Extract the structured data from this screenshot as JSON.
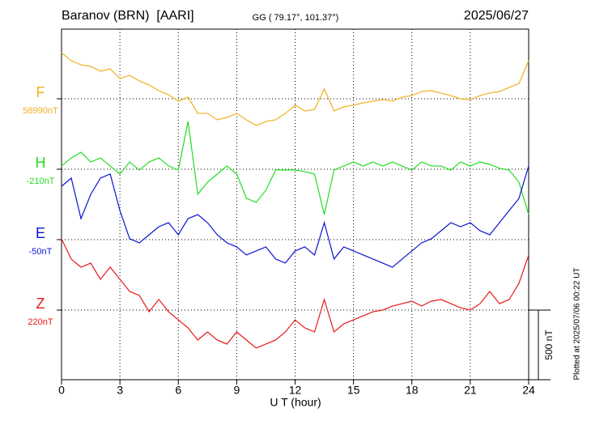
{
  "chart_data": {
    "type": "line",
    "title": "Baranov (BRN)  [AARI]",
    "subtitle": "GG ( 79.17°, 101.37°)",
    "date": "2025/06/27",
    "x_label": "U T (hour)",
    "note": "Plotted at 2025/07/06 00:22 UT",
    "scale_bar": {
      "value": 500,
      "label": "500 nT"
    },
    "xlim": [
      0,
      24
    ],
    "xticks": [
      0,
      3,
      6,
      9,
      12,
      15,
      18,
      21,
      24
    ],
    "grid": true,
    "x": [
      0,
      0.5,
      1,
      1.5,
      2,
      2.5,
      3,
      3.5,
      4,
      4.5,
      5,
      5.5,
      6,
      6.5,
      7,
      7.5,
      8,
      8.5,
      9,
      9.5,
      10,
      10.5,
      11,
      11.5,
      12,
      12.5,
      13,
      13.5,
      14,
      14.5,
      15,
      15.5,
      16,
      16.5,
      17,
      17.5,
      18,
      18.5,
      19,
      19.5,
      20,
      20.5,
      21,
      21.5,
      22,
      22.5,
      23,
      23.5,
      24
    ],
    "series": [
      {
        "name": "F",
        "color": "#f0b020",
        "baseline": {
          "value": 58990,
          "label": "58990nT"
        },
        "values": [
          59321,
          59263,
          59234,
          59222,
          59188,
          59205,
          59135,
          59158,
          59118,
          59089,
          59048,
          59019,
          58973,
          59002,
          58885,
          58885,
          58839,
          58856,
          58885,
          58839,
          58798,
          58827,
          58839,
          58885,
          58944,
          58903,
          58914,
          59060,
          58903,
          58932,
          58944,
          58961,
          58973,
          58984,
          58973,
          59002,
          59013,
          59042,
          59048,
          59031,
          59013,
          58990,
          58984,
          59013,
          59031,
          59042,
          59071,
          59100,
          59263
        ]
      },
      {
        "name": "H",
        "color": "#22dd22",
        "baseline": {
          "value": -210,
          "label": "-210nT"
        },
        "values": [
          -187,
          -129,
          -88,
          -158,
          -129,
          -187,
          -245,
          -158,
          -216,
          -158,
          -129,
          -187,
          -216,
          133,
          -390,
          -303,
          -245,
          -187,
          -245,
          -419,
          -448,
          -361,
          -216,
          -216,
          -216,
          -227,
          -245,
          -535,
          -216,
          -187,
          -158,
          -187,
          -158,
          -187,
          -158,
          -187,
          -216,
          -158,
          -187,
          -187,
          -216,
          -158,
          -187,
          -158,
          -175,
          -204,
          -216,
          -303,
          -535
        ]
      },
      {
        "name": "E",
        "color": "#0a14d0",
        "baseline": {
          "value": -50,
          "label": "-50nT"
        },
        "values": [
          333,
          392,
          101,
          275,
          392,
          421,
          159,
          -44,
          -73,
          -15,
          43,
          72,
          -15,
          101,
          130,
          72,
          -15,
          -73,
          -102,
          -160,
          -131,
          -102,
          -189,
          -218,
          -131,
          -102,
          -160,
          72,
          -189,
          -102,
          -131,
          -160,
          -189,
          -218,
          -248,
          -189,
          -131,
          -73,
          -44,
          14,
          72,
          43,
          72,
          14,
          -15,
          72,
          159,
          246,
          479
        ]
      },
      {
        "name": "Z",
        "color": "#e81818",
        "baseline": {
          "value": 220,
          "label": "220nT"
        },
        "values": [
          731,
          586,
          528,
          557,
          441,
          528,
          441,
          354,
          325,
          208,
          296,
          208,
          150,
          92,
          5,
          63,
          5,
          -24,
          63,
          5,
          -53,
          -24,
          5,
          63,
          150,
          92,
          63,
          296,
          63,
          121,
          150,
          179,
          208,
          220,
          249,
          266,
          284,
          249,
          284,
          296,
          266,
          237,
          220,
          266,
          354,
          266,
          296,
          412,
          615
        ]
      }
    ]
  }
}
